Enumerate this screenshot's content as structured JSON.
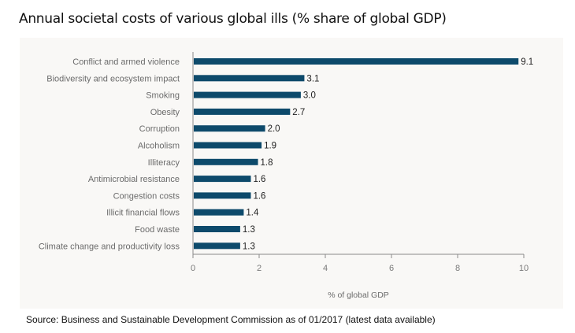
{
  "title": "Annual societal costs of various global ills (% share of global GDP)",
  "source": "Source: Business and Sustainable Development Commission as of 01/2017 (latest data available)",
  "colors": {
    "bar": "#0d4a6b",
    "panel": "#f9f8f6",
    "axis": "#8a8a8a"
  },
  "chart_data": {
    "type": "bar",
    "orientation": "horizontal",
    "title": "Annual societal costs of various global ills (% share of global GDP)",
    "xlabel": "% of global GDP",
    "ylabel": "",
    "xlim": [
      0,
      10
    ],
    "xticks": [
      0,
      2,
      4,
      6,
      8,
      10
    ],
    "grid": false,
    "categories": [
      "Conflict and armed violence",
      "Biodiversity and ecosystem impact",
      "Smoking",
      "Obesity",
      "Corruption",
      "Alcoholism",
      "Illiteracy",
      "Antimicrobial resistance",
      "Congestion costs",
      "Illicit financial flows",
      "Food waste",
      "Climate change and productivity loss"
    ],
    "values": [
      9.1,
      3.1,
      3.0,
      2.7,
      2.0,
      1.9,
      1.8,
      1.6,
      1.6,
      1.4,
      1.3,
      1.3
    ],
    "value_labels": [
      "9.1",
      "3.1",
      "3.0",
      "2.7",
      "2.0",
      "1.9",
      "1.8",
      "1.6",
      "1.6",
      "1.4",
      "1.3",
      "1.3"
    ]
  }
}
